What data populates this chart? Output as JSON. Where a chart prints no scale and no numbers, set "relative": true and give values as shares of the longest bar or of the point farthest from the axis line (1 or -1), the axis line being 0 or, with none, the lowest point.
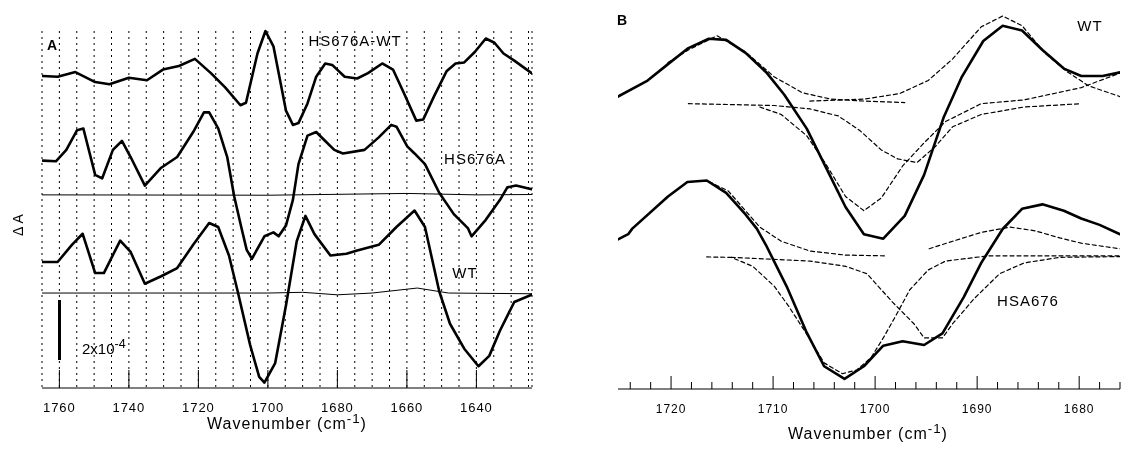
{
  "chart_data": [
    {
      "type": "line",
      "relative": true,
      "xlabel": "Wavenumber (cm$^{-1}$)",
      "ylabel": "Δ A",
      "annotations": [
        "A",
        "2x10$^{-4}$"
      ],
      "xlim": [
        1765,
        1624
      ],
      "xticks": [
        {
          "value": 1765,
          "label": null
        },
        1760,
        {
          "value": 1755,
          "label": null
        },
        {
          "value": 1750,
          "label": null
        },
        {
          "value": 1745,
          "label": null
        },
        1740,
        {
          "value": 1735,
          "label": null
        },
        {
          "value": 1730,
          "label": null
        },
        {
          "value": 1725,
          "label": null
        },
        1720,
        {
          "value": 1715,
          "label": null
        },
        {
          "value": 1710,
          "label": null
        },
        {
          "value": 1705,
          "label": null
        },
        1700,
        {
          "value": 1695,
          "label": null
        },
        {
          "value": 1690,
          "label": null
        },
        {
          "value": 1685,
          "label": null
        },
        1680,
        {
          "value": 1675,
          "label": null
        },
        {
          "value": 1670,
          "label": null
        },
        {
          "value": 1665,
          "label": null
        },
        1660,
        {
          "value": 1655,
          "label": null
        },
        {
          "value": 1650,
          "label": null
        },
        {
          "value": 1645,
          "label": null
        },
        1640,
        {
          "value": 1635,
          "label": null
        },
        {
          "value": 1630,
          "label": null
        },
        {
          "value": 1625,
          "label": null
        }
      ],
      "grid": "x",
      "line_style": "solid",
      "series": [
        {
          "name": "HS676A-WT",
          "color": "#000000",
          "x": [
            1764.8,
            1760.5,
            1755.4,
            1749.7,
            1745.6,
            1740.0,
            1734.8,
            1730.2,
            1725.6,
            1721.0,
            1716.4,
            1712.3,
            1707.9,
            1706.3,
            1703.0,
            1700.7,
            1698.4,
            1694.8,
            1692.8,
            1691.2,
            1688.6,
            1686.1,
            1683.5,
            1681.5,
            1677.9,
            1674.3,
            1671.2,
            1667.1,
            1664.0,
            1660.9,
            1657.3,
            1655.3,
            1652.2,
            1648.6,
            1646.0,
            1643.5,
            1640.4,
            1637.3,
            1634.8,
            1632.2,
            1629.1,
            1624.1
          ],
          "values": [
            0.874,
            0.872,
            0.885,
            0.857,
            0.851,
            0.869,
            0.862,
            0.892,
            0.902,
            0.922,
            0.882,
            0.842,
            0.792,
            0.799,
            0.937,
            1,
            0.957,
            0.777,
            0.737,
            0.742,
            0.797,
            0.872,
            0.909,
            0.905,
            0.872,
            0.867,
            0.882,
            0.909,
            0.892,
            0.827,
            0.749,
            0.752,
            0.817,
            0.887,
            0.909,
            0.912,
            0.942,
            0.979,
            0.967,
            0.937,
            0.917,
            0.882
          ]
        },
        {
          "name": "HS676A",
          "color": "#000000",
          "x": [
            1764.8,
            1761.0,
            1758.0,
            1754.9,
            1753.1,
            1749.7,
            1747.7,
            1744.6,
            1742.0,
            1739.5,
            1735.4,
            1730.7,
            1726.1,
            1721.5,
            1718.4,
            1716.9,
            1714.3,
            1711.7,
            1709.7,
            1707.6,
            1706.1,
            1704.6,
            1701.0,
            1698.4,
            1696.9,
            1694.8,
            1692.8,
            1691.2,
            1688.6,
            1686.1,
            1683.5,
            1680.9,
            1678.4,
            1672.2,
            1668.1,
            1664.5,
            1663.0,
            1659.9,
            1657.8,
            1654.8,
            1650.7,
            1646.5,
            1642.4,
            1641.4,
            1637.3,
            1633.2,
            1631.1,
            1628.6,
            1624.1
          ],
          "values": [
            0.637,
            0.635,
            0.667,
            0.722,
            0.727,
            0.597,
            0.587,
            0.667,
            0.692,
            0.647,
            0.567,
            0.617,
            0.647,
            0.717,
            0.772,
            0.772,
            0.727,
            0.647,
            0.537,
            0.448,
            0.387,
            0.362,
            0.425,
            0.436,
            0.425,
            0.455,
            0.527,
            0.627,
            0.707,
            0.717,
            0.692,
            0.667,
            0.657,
            0.667,
            0.702,
            0.737,
            0.732,
            0.677,
            0.657,
            0.627,
            0.547,
            0.487,
            0.447,
            0.425,
            0.471,
            0.527,
            0.562,
            0.567,
            0.557
          ]
        },
        {
          "color": "#000000",
          "x": [
            1765,
            1700,
            1660,
            1640,
            1624
          ],
          "values": [
            0.541,
            0.54,
            0.545,
            0.541,
            0.542
          ]
        },
        {
          "name": "WT",
          "color": "#000000",
          "x": [
            1764.8,
            1760.5,
            1756.4,
            1753.3,
            1749.7,
            1747.2,
            1742.5,
            1739.5,
            1735.4,
            1730.7,
            1726.1,
            1721.5,
            1716.9,
            1714.3,
            1711.2,
            1708.7,
            1705.1,
            1702.5,
            1701.0,
            1697.9,
            1694.8,
            1691.7,
            1689.2,
            1686.6,
            1682.0,
            1677.4,
            1674.3,
            1668.1,
            1663.0,
            1657.8,
            1654.8,
            1650.7,
            1647.6,
            1643.5,
            1639.4,
            1636.3,
            1633.2,
            1629.1,
            1624.1
          ],
          "values": [
            0.353,
            0.353,
            0.401,
            0.432,
            0.322,
            0.322,
            0.413,
            0.381,
            0.292,
            0.313,
            0.336,
            0.401,
            0.462,
            0.451,
            0.371,
            0.271,
            0.12,
            0.031,
            0.015,
            0.07,
            0.231,
            0.411,
            0.482,
            0.431,
            0.371,
            0.376,
            0.385,
            0.401,
            0.451,
            0.497,
            0.451,
            0.271,
            0.18,
            0.11,
            0.061,
            0.09,
            0.161,
            0.241,
            0.261
          ]
        },
        {
          "color": "#000000",
          "x": [
            1765,
            1700,
            1690,
            1680,
            1670,
            1657,
            1648,
            1624
          ],
          "values": [
            0.266,
            0.266,
            0.268,
            0.261,
            0.266,
            0.28,
            0.266,
            0.264
          ]
        }
      ]
    },
    {
      "type": "line",
      "relative": true,
      "xlabel": "Wavenumber (cm$^{-1}$)",
      "annotations": [
        "B"
      ],
      "xlim": [
        1725.2,
        1676
      ],
      "xticks": [
        {
          "value": 1724,
          "label": null
        },
        {
          "value": 1722,
          "label": null
        },
        1720,
        {
          "value": 1718,
          "label": null
        },
        {
          "value": 1716,
          "label": null
        },
        {
          "value": 1714,
          "label": null
        },
        {
          "value": 1712,
          "label": null
        },
        1710,
        {
          "value": 1708,
          "label": null
        },
        {
          "value": 1706,
          "label": null
        },
        {
          "value": 1704,
          "label": null
        },
        {
          "value": 1702,
          "label": null
        },
        1700,
        {
          "value": 1698,
          "label": null
        },
        {
          "value": 1696,
          "label": null
        },
        {
          "value": 1694,
          "label": null
        },
        {
          "value": 1692,
          "label": null
        },
        1690,
        {
          "value": 1688,
          "label": null
        },
        {
          "value": 1686,
          "label": null
        },
        {
          "value": 1684,
          "label": null
        },
        {
          "value": 1682,
          "label": null
        },
        1680,
        {
          "value": 1678,
          "label": null
        },
        {
          "value": 1676,
          "label": null
        }
      ],
      "line_style": "solid",
      "series": [
        {
          "name": "WT",
          "color": "#000000",
          "x": [
            1725.2,
            1722.3,
            1720.3,
            1718.3,
            1716.3,
            1714.6,
            1712.7,
            1710.6,
            1708.9,
            1706.7,
            1704.8,
            1702.9,
            1701.1,
            1699.2,
            1697.1,
            1695.2,
            1693.3,
            1691.5,
            1689.4,
            1687.5,
            1685.6,
            1683.6,
            1681.5,
            1679.8,
            1677.7,
            1676.0
          ],
          "values": [
            0.784,
            0.827,
            0.871,
            0.914,
            0.939,
            0.936,
            0.901,
            0.847,
            0.789,
            0.698,
            0.593,
            0.488,
            0.415,
            0.403,
            0.464,
            0.574,
            0.727,
            0.837,
            0.933,
            0.974,
            0.961,
            0.909,
            0.859,
            0.839,
            0.839,
            0.849
          ]
        },
        {
          "color": "#000000",
          "line_style": "dashed",
          "x": [
            1720.3,
            1718.3,
            1715.5,
            1712.7,
            1709.9,
            1707.1,
            1704.3,
            1701.1,
            1697.1
          ],
          "values": [
            0.875,
            0.909,
            0.947,
            0.904,
            0.837,
            0.794,
            0.777,
            0.772,
            0.768
          ]
        },
        {
          "color": "#000000",
          "line_style": "dashed",
          "x": [
            1706.4,
            1701.1,
            1697.6,
            1694.8,
            1692.4,
            1689.6,
            1687.5,
            1685.6,
            1683.3,
            1681.2,
            1679.1,
            1676.0
          ],
          "values": [
            0.772,
            0.777,
            0.792,
            0.827,
            0.885,
            0.971,
            1,
            0.974,
            0.899,
            0.851,
            0.813,
            0.784
          ]
        },
        {
          "color": "#000000",
          "line_style": "dashed",
          "x": [
            1718.3,
            1709.9,
            1706.4,
            1703.6,
            1701.5,
            1699.4,
            1697.8,
            1695.9,
            1694.1,
            1692.4,
            1689.6,
            1685.4,
            1679.8
          ],
          "values": [
            0.765,
            0.76,
            0.751,
            0.732,
            0.693,
            0.641,
            0.617,
            0.607,
            0.65,
            0.703,
            0.736,
            0.756,
            0.765
          ]
        },
        {
          "color": "#000000",
          "line_style": "dashed",
          "x": [
            1711.3,
            1709.2,
            1706.7,
            1704.8,
            1702.9,
            1701.1,
            1699.4,
            1697.3,
            1695.2,
            1693.1,
            1689.6,
            1685.4,
            1679.8,
            1676.0
          ],
          "values": [
            0.756,
            0.736,
            0.679,
            0.602,
            0.516,
            0.478,
            0.512,
            0.598,
            0.66,
            0.717,
            0.765,
            0.775,
            0.808,
            0.847
          ]
        },
        {
          "name": "HSA676",
          "color": "#000000",
          "x": [
            1725.2,
            1724.2,
            1723.8,
            1720.3,
            1718.4,
            1716.5,
            1714.6,
            1712.7,
            1711.6,
            1710.7,
            1708.6,
            1706.7,
            1705.0,
            1703.0,
            1701.1,
            1699.2,
            1697.3,
            1695.2,
            1693.4,
            1691.3,
            1689.6,
            1687.5,
            1685.6,
            1683.6,
            1681.5,
            1679.8,
            1678.0,
            1676.0
          ],
          "values": [
            0.401,
            0.415,
            0.43,
            0.516,
            0.555,
            0.559,
            0.526,
            0.468,
            0.43,
            0.386,
            0.271,
            0.151,
            0.061,
            0.027,
            0.061,
            0.116,
            0.128,
            0.118,
            0.149,
            0.247,
            0.338,
            0.429,
            0.483,
            0.495,
            0.478,
            0.457,
            0.44,
            0.415
          ]
        },
        {
          "color": "#000000",
          "line_style": "dashed",
          "x": [
            1716.5,
            1714.1,
            1712.0,
            1709.9,
            1708.5,
            1706.7,
            1705.0,
            1703.2,
            1701.8,
            1700.4,
            1699.2,
            1698.0,
            1696.6,
            1694.8,
            1693.1,
            1688.9,
            1681.9,
            1676.0
          ],
          "values": [
            0.354,
            0.353,
            0.329,
            0.276,
            0.223,
            0.147,
            0.07,
            0.041,
            0.051,
            0.084,
            0.137,
            0.195,
            0.266,
            0.319,
            0.343,
            0.357,
            0.357,
            0.357
          ]
        },
        {
          "color": "#000000",
          "line_style": "dashed",
          "x": [
            1718.3,
            1716.5,
            1714.4,
            1712.7,
            1711.3,
            1709.2,
            1706.4,
            1702.9,
            1699.0
          ],
          "values": [
            0.555,
            0.559,
            0.531,
            0.478,
            0.434,
            0.396,
            0.37,
            0.359,
            0.357
          ]
        },
        {
          "color": "#000000",
          "line_style": "dashed",
          "x": [
            1714.1,
            1706.4,
            1702.9,
            1700.8,
            1698.3,
            1696.2,
            1695.2,
            1693.4,
            1692.4,
            1690.3,
            1687.8,
            1685.4,
            1681.9,
            1676.0
          ],
          "values": [
            0.353,
            0.343,
            0.329,
            0.309,
            0.233,
            0.175,
            0.137,
            0.137,
            0.175,
            0.242,
            0.309,
            0.338,
            0.353,
            0.355
          ]
        },
        {
          "color": "#000000",
          "line_style": "dashed",
          "x": [
            1694.7,
            1692.4,
            1689.6,
            1686.8,
            1684.3,
            1681.9,
            1679.8,
            1676.0
          ],
          "values": [
            0.376,
            0.396,
            0.42,
            0.434,
            0.424,
            0.405,
            0.391,
            0.376
          ]
        }
      ]
    }
  ]
}
